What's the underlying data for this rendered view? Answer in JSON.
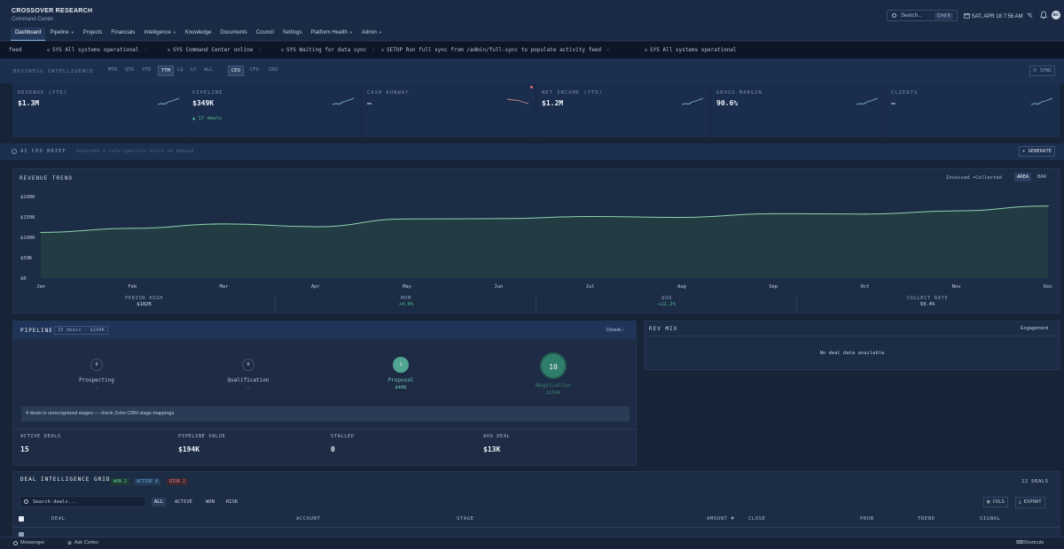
{
  "brand": {
    "name": "CROSSOVER RESEARCH",
    "subtitle": "Command Center"
  },
  "nav": [
    {
      "label": "Dashboard",
      "active": true,
      "dropdown": false
    },
    {
      "label": "Pipeline",
      "dropdown": true
    },
    {
      "label": "Projects",
      "dropdown": false
    },
    {
      "label": "Financials",
      "dropdown": false
    },
    {
      "label": "Intelligence",
      "dropdown": true
    },
    {
      "label": "Knowledge",
      "dropdown": false
    },
    {
      "label": "Documents",
      "dropdown": false
    },
    {
      "label": "Council",
      "dropdown": false
    },
    {
      "label": "Settings",
      "dropdown": false
    },
    {
      "label": "Platform Health",
      "dropdown": true
    },
    {
      "label": "Admin",
      "dropdown": true
    }
  ],
  "header": {
    "search_placeholder": "Search...",
    "search_kbd": "Cmd K",
    "datetime": "SAT, APR 18 7:56 AM",
    "avatar": "BC"
  },
  "ticker": [
    "feed",
    "SYS All systems operational",
    "SYS Command Center online",
    "SYS Waiting for data sync",
    "SETUP Run full sync from /admin/full-sync to populate activity feed",
    "SYS All systems operational"
  ],
  "bi": {
    "label": "BUSINESS INTELLIGENCE",
    "periods": [
      "MTD",
      "QTD",
      "YTD",
      "TTM",
      "LQ",
      "LY",
      "ALL"
    ],
    "active_period": "TTM",
    "roles": [
      "CEO",
      "CFO",
      "CRO"
    ],
    "active_role": "CEO",
    "sync_label": "SYNC"
  },
  "kpis": [
    {
      "title": "REVENUE (YTD)",
      "value": "$1.3M",
      "sub": "",
      "trend": "up"
    },
    {
      "title": "PIPELINE",
      "value": "$349K",
      "sub": "▲ 17 deals",
      "trend": "up"
    },
    {
      "title": "CASH RUNWAY",
      "value": "—",
      "sub": "",
      "trend": "down"
    },
    {
      "title": "NET INCOME (YTD)",
      "value": "$1.2M",
      "sub": "",
      "trend": "up"
    },
    {
      "title": "GROSS MARGIN",
      "value": "90.6%",
      "sub": "",
      "trend": "up"
    },
    {
      "title": "CLIENTS",
      "value": "—",
      "sub": "",
      "trend": "up"
    }
  ],
  "ai_brief": {
    "title": "AI CEO BRIEF",
    "hint": "Generate a role-specific brief on demand",
    "button": "GENERATE"
  },
  "revenue": {
    "title": "REVENUE TREND",
    "legend": [
      "Invoiced",
      "Collected"
    ],
    "modes": [
      "AREA",
      "BAR"
    ],
    "active_mode": "AREA",
    "stats": [
      {
        "label": "PERIOD HIGH",
        "value": "$182K"
      },
      {
        "label": "MOM",
        "value": "+4.0%"
      },
      {
        "label": "QOQ",
        "value": "+11.2%"
      },
      {
        "label": "COLLECT RATE",
        "value": "93.4%"
      }
    ]
  },
  "chart_data": {
    "type": "area",
    "categories": [
      "Jan",
      "Feb",
      "Mar",
      "Apr",
      "May",
      "Jun",
      "Jul",
      "Aug",
      "Sep",
      "Oct",
      "Nov",
      "Dec"
    ],
    "series": [
      {
        "name": "Collected",
        "values": [
          112,
          122,
          133,
          126,
          145,
          146,
          151,
          149,
          158,
          157,
          165,
          177
        ]
      }
    ],
    "y_ticks": [
      "$200K",
      "$150K",
      "$100K",
      "$50K",
      "$0"
    ],
    "ylim": [
      0,
      200
    ],
    "grid": false
  },
  "pipeline": {
    "title": "PIPELINE",
    "badge": "15 deals · $194K",
    "details": "Details",
    "stages": [
      {
        "count": "0",
        "name": "Prospecting",
        "value": "—"
      },
      {
        "count": "0",
        "name": "Qualification",
        "value": "—"
      },
      {
        "count": "1",
        "name": "Proposal",
        "value": "$40K"
      },
      {
        "count": "10",
        "name": "Negotiation",
        "value": "$154K"
      }
    ],
    "warning": "4 deals in unrecognized stages — check Zoho CRM stage mappings",
    "stats": [
      {
        "label": "ACTIVE DEALS",
        "value": "15"
      },
      {
        "label": "PIPELINE VALUE",
        "value": "$194K"
      },
      {
        "label": "STALLED",
        "value": "0"
      },
      {
        "label": "AVG DEAL",
        "value": "$13K"
      }
    ]
  },
  "rev_mix": {
    "title": "REV MIX",
    "toggle": "Engagement",
    "empty": "No deal data available"
  },
  "deals": {
    "title": "DEAL INTELLIGENCE GRID",
    "tags": [
      "WON 2",
      "ACTIVE 8",
      "RISK 2"
    ],
    "count": "12 DEALS",
    "search_placeholder": "Search deals...",
    "filters": [
      "ALL",
      "ACTIVE",
      "WON",
      "RISK"
    ],
    "active_filter": "ALL",
    "cols_button": "COLS",
    "export_button": "EXPORT",
    "columns": [
      "DEAL",
      "ACCOUNT",
      "STAGE",
      "AMOUNT ▼",
      "CLOSE",
      "PROB",
      "TREND",
      "SIGNAL"
    ]
  },
  "footer": {
    "messenger": "Messenger",
    "cortex": "Ask Cortex",
    "shortcuts": "Shortcuts"
  },
  "colors": {
    "accent": "#8fb3e0",
    "positive": "#4fbf8f",
    "negative": "#e06c6c",
    "chart_line": "#8fd3b0"
  }
}
